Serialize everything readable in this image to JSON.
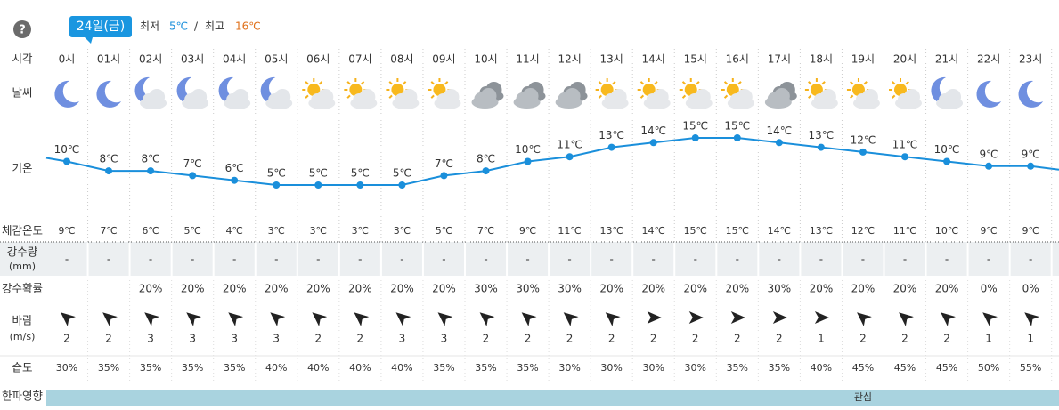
{
  "header": {
    "help": "?",
    "date": "24일(금)",
    "min_label": "최저",
    "min": "5℃",
    "sep": "/",
    "max_label": "최고",
    "max": "16℃",
    "min_color": "#1a8fdb",
    "max_color": "#e0701a",
    "badge_color": "#1a96e0"
  },
  "row_labels": {
    "time": "시각",
    "weather": "날씨",
    "temp": "기온",
    "feels": "체감온도",
    "precip": "강수량",
    "precip_unit": "(mm)",
    "prob": "강수확률",
    "wind": "바람",
    "wind_unit": "(m/s)",
    "humidity": "습도",
    "cold": "한파영향"
  },
  "hours": [
    "0시",
    "01시",
    "02시",
    "03시",
    "04시",
    "05시",
    "06시",
    "07시",
    "08시",
    "09시",
    "10시",
    "11시",
    "12시",
    "13시",
    "14시",
    "15시",
    "16시",
    "17시",
    "18시",
    "19시",
    "20시",
    "21시",
    "22시",
    "23시"
  ],
  "icons": [
    "moon",
    "moon",
    "moon-cloud",
    "moon-cloud",
    "moon-cloud",
    "moon-cloud",
    "sun-cloud",
    "sun-cloud",
    "sun-cloud",
    "sun-cloud",
    "cloud",
    "cloud",
    "cloud",
    "sun-cloud",
    "sun-cloud",
    "sun-cloud",
    "sun-cloud",
    "cloud",
    "sun-cloud",
    "sun-cloud",
    "sun-cloud",
    "moon-cloud",
    "moon",
    "moon"
  ],
  "temperature": {
    "values": [
      10,
      8,
      8,
      7,
      6,
      5,
      5,
      5,
      5,
      7,
      8,
      10,
      11,
      13,
      14,
      15,
      15,
      14,
      13,
      12,
      11,
      10,
      9,
      9
    ],
    "value_labels": [
      "10℃",
      "8℃",
      "8℃",
      "7℃",
      "6℃",
      "5℃",
      "5℃",
      "5℃",
      "5℃",
      "7℃",
      "8℃",
      "10℃",
      "11℃",
      "13℃",
      "14℃",
      "15℃",
      "15℃",
      "14℃",
      "13℃",
      "12℃",
      "11℃",
      "10℃",
      "9℃",
      "9℃"
    ],
    "color": "#1a8fdb"
  },
  "feels_like": [
    "9℃",
    "7℃",
    "6℃",
    "5℃",
    "4℃",
    "3℃",
    "3℃",
    "3℃",
    "3℃",
    "5℃",
    "7℃",
    "9℃",
    "11℃",
    "13℃",
    "14℃",
    "15℃",
    "15℃",
    "14℃",
    "13℃",
    "12℃",
    "11℃",
    "10℃",
    "9℃",
    "9℃"
  ],
  "precipitation": [
    "-",
    "-",
    "-",
    "-",
    "-",
    "-",
    "-",
    "-",
    "-",
    "-",
    "-",
    "-",
    "-",
    "-",
    "-",
    "-",
    "-",
    "-",
    "-",
    "-",
    "-",
    "-",
    "-",
    "-"
  ],
  "precip_prob": [
    null,
    null,
    "20%",
    "20%",
    "20%",
    "20%",
    "20%",
    "20%",
    "20%",
    "20%",
    "30%",
    "30%",
    "30%",
    "20%",
    "20%",
    "20%",
    "20%",
    "30%",
    "20%",
    "20%",
    "20%",
    "20%",
    "0%",
    "0%"
  ],
  "wind": {
    "speed": [
      2,
      2,
      3,
      3,
      3,
      3,
      2,
      2,
      3,
      3,
      2,
      2,
      2,
      2,
      2,
      2,
      2,
      2,
      1,
      2,
      2,
      2,
      1,
      1
    ],
    "direction": [
      -140,
      -140,
      -140,
      -140,
      -140,
      -140,
      -140,
      -140,
      -140,
      -140,
      -140,
      -140,
      -140,
      -140,
      0,
      0,
      0,
      0,
      0,
      -140,
      -140,
      -140,
      -140,
      -140
    ]
  },
  "humidity": [
    "30%",
    "35%",
    "35%",
    "35%",
    "35%",
    "40%",
    "40%",
    "40%",
    "40%",
    "35%",
    "35%",
    "35%",
    "30%",
    "30%",
    "30%",
    "30%",
    "35%",
    "35%",
    "40%",
    "45%",
    "45%",
    "45%",
    "50%",
    "55%"
  ],
  "cold_wave": {
    "labels": [
      null,
      null,
      null,
      null,
      null,
      null,
      null,
      null,
      null,
      null,
      null,
      null,
      null,
      null,
      null,
      null,
      null,
      null,
      null,
      "관심",
      null,
      null,
      null,
      null
    ],
    "color": "#a9d3df"
  }
}
